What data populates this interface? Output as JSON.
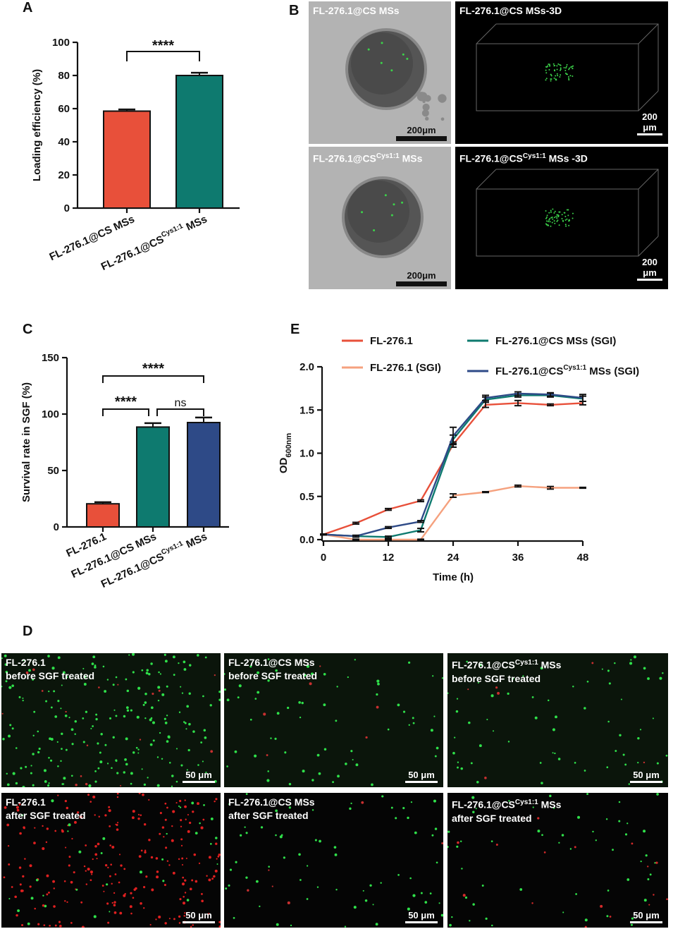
{
  "panels": {
    "A": "A",
    "B": "B",
    "C": "C",
    "D": "D",
    "E": "E"
  },
  "panelA": {
    "chart_data": {
      "type": "bar",
      "ylabel": "Loading efficiency (%)",
      "ylim": [
        0,
        100
      ],
      "yticks": [
        "0",
        "20",
        "40",
        "60",
        "80",
        "100"
      ],
      "categories": [
        "FL-276.1@CS MSs",
        "FL-276.1@CS^Cys1:1 MSs"
      ],
      "category_main": [
        "FL-276.1@CS MSs",
        "FL-276.1@CS"
      ],
      "category_sup": [
        "",
        "Cys1:1"
      ],
      "category_tail": [
        "",
        " MSs"
      ],
      "values": [
        58.5,
        80
      ],
      "errors": [
        0.4,
        1.0
      ],
      "colors": [
        "#e8503a",
        "#0e7a6f"
      ],
      "significance": "****"
    }
  },
  "panelB": {
    "images": [
      {
        "label_main": "FL-276.1@CS MSs",
        "label_sup": "",
        "label_tail": "",
        "scale": "200μm"
      },
      {
        "label_main": "FL-276.1@CS MSs-3D",
        "label_sup": "",
        "label_tail": "",
        "scale": "200 μm"
      },
      {
        "label_main": "FL-276.1@CS",
        "label_sup": "Cys1:1",
        "label_tail": " MSs",
        "scale": "200μm"
      },
      {
        "label_main": "FL-276.1@CS",
        "label_sup": "Cys1:1",
        "label_tail": " MSs -3D",
        "scale": "200 μm"
      }
    ]
  },
  "panelC": {
    "chart_data": {
      "type": "bar",
      "ylabel": "Survival rate in SGF (%)",
      "ylim": [
        0,
        150
      ],
      "yticks": [
        "0",
        "50",
        "100",
        "150"
      ],
      "categories": [
        "FL-276.1",
        "FL-276.1@CS MSs",
        "FL-276.1@CS^Cys1:1 MSs"
      ],
      "category_main": [
        "FL-276.1",
        "FL-276.1@CS MSs",
        "FL-276.1@CS"
      ],
      "category_sup": [
        "",
        "",
        "Cys1:1"
      ],
      "category_tail": [
        "",
        "",
        " MSs"
      ],
      "values": [
        20.5,
        88.5,
        92.5
      ],
      "errors": [
        0.5,
        2.5,
        3.5
      ],
      "colors": [
        "#e8503a",
        "#0e7a6f",
        "#2e4a87"
      ],
      "significance": [
        "****",
        "****",
        "ns"
      ]
    }
  },
  "panelE": {
    "chart_data": {
      "type": "line",
      "xlabel": "Time (h)",
      "ylabel_main": "OD",
      "ylabel_sub": "600nm",
      "xlim": [
        0,
        48
      ],
      "ylim": [
        0,
        2.0
      ],
      "xticks": [
        "0",
        "12",
        "24",
        "36",
        "48"
      ],
      "yticks": [
        "0.0",
        "0.5",
        "1.0",
        "1.5",
        "2.0"
      ],
      "x": [
        0,
        6,
        12,
        18,
        24,
        30,
        36,
        42,
        48
      ],
      "series": [
        {
          "name": "FL-276.1",
          "color": "#e8503a",
          "values": [
            0.06,
            0.19,
            0.35,
            0.45,
            1.1,
            1.56,
            1.58,
            1.56,
            1.58
          ],
          "errors": [
            0.005,
            0.01,
            0.01,
            0.01,
            0.03,
            0.03,
            0.03,
            0.01,
            0.02
          ]
        },
        {
          "name": "FL-276.1 (SGI)",
          "color": "#f5a17e",
          "values": [
            0.06,
            0.0,
            0.0,
            0.0,
            0.51,
            0.55,
            0.62,
            0.6,
            0.6
          ],
          "errors": [
            0.005,
            0.005,
            0.005,
            0.005,
            0.02,
            0.005,
            0.01,
            0.015,
            0.005
          ]
        },
        {
          "name": "FL-276.1@CS MSs (SGI)",
          "color": "#0e7a6f",
          "values": [
            0.06,
            0.04,
            0.03,
            0.11,
            1.16,
            1.62,
            1.67,
            1.67,
            1.63
          ],
          "errors": [
            0.005,
            0.01,
            0.01,
            0.02,
            0.05,
            0.03,
            0.02,
            0.02,
            0.03
          ]
        },
        {
          "name": "FL-276.1@CS^Cys1:1 MSs (SGI)",
          "color": "#2e4a87",
          "values": [
            0.06,
            0.04,
            0.14,
            0.21,
            1.2,
            1.64,
            1.69,
            1.68,
            1.64
          ],
          "errors": [
            0.005,
            0.01,
            0.01,
            0.01,
            0.1,
            0.03,
            0.02,
            0.02,
            0.04
          ]
        }
      ],
      "legend": [
        {
          "main": "FL-276.1",
          "sup": "",
          "tail": ""
        },
        {
          "main": "FL-276.1 (SGI)",
          "sup": "",
          "tail": ""
        },
        {
          "main": "FL-276.1@CS MSs (SGI)",
          "sup": "",
          "tail": ""
        },
        {
          "main": "FL-276.1@CS",
          "sup": "Cys1:1",
          "tail": " MSs (SGI)"
        }
      ]
    }
  },
  "panelD": {
    "images": [
      {
        "line1_main": "FL-276.1",
        "line1_sup": "",
        "line1_tail": "",
        "line2": "before SGF treated",
        "scale": "50 μm",
        "dots": "green"
      },
      {
        "line1_main": "FL-276.1@CS MSs",
        "line1_sup": "",
        "line1_tail": "",
        "line2": "before SGF treated",
        "scale": "50 μm",
        "dots": "green"
      },
      {
        "line1_main": "FL-276.1@CS",
        "line1_sup": "Cys1:1",
        "line1_tail": " MSs",
        "line2": "before SGF treated",
        "scale": "50 μm",
        "dots": "green"
      },
      {
        "line1_main": "FL-276.1",
        "line1_sup": "",
        "line1_tail": "",
        "line2": "after SGF treated",
        "scale": "50 μm",
        "dots": "red"
      },
      {
        "line1_main": "FL-276.1@CS MSs",
        "line1_sup": "",
        "line1_tail": "",
        "line2": "after SGF treated",
        "scale": "50 μm",
        "dots": "green"
      },
      {
        "line1_main": "FL-276.1@CS",
        "line1_sup": "Cys1:1",
        "line1_tail": " MSs",
        "line2": "after SGF treated",
        "scale": "50 μm",
        "dots": "mixed"
      }
    ]
  }
}
